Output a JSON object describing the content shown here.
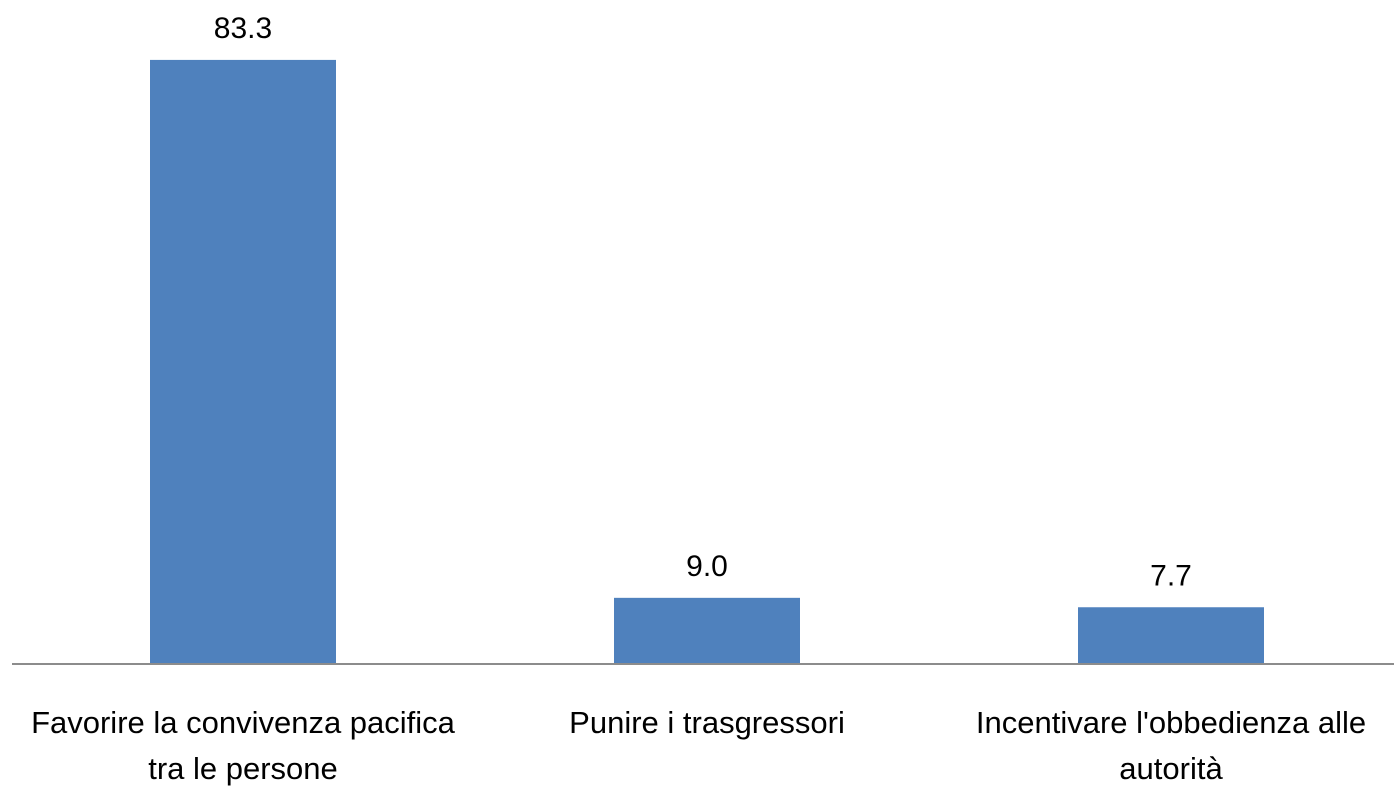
{
  "chart_data": {
    "type": "bar",
    "categories": [
      "Favorire la convivenza pacifica tra le persone",
      "Punire i trasgressori",
      "Incentivare l'obbedienza alle autorità"
    ],
    "values": [
      83.3,
      9.0,
      7.7
    ],
    "value_labels": [
      "83.3",
      "9.0",
      "7.7"
    ],
    "color": "#4f81bd"
  }
}
